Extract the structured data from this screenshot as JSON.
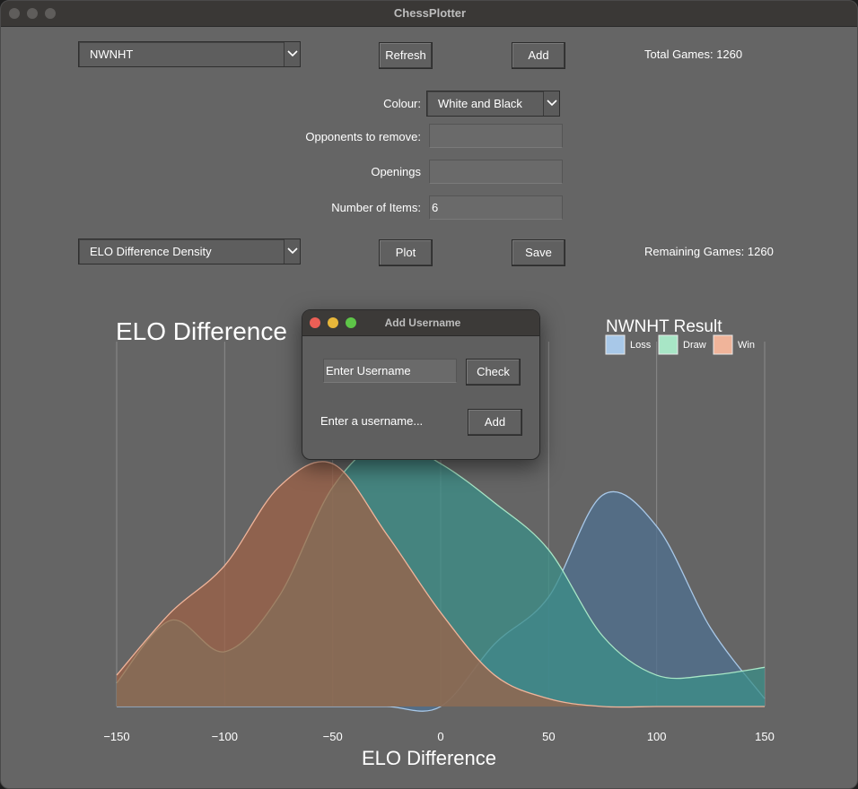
{
  "window": {
    "title": "ChessPlotter"
  },
  "controls": {
    "username_select": "NWNHT",
    "refresh_label": "Refresh",
    "add_label": "Add",
    "total_games": "Total Games: 1260",
    "colour_label": "Colour:",
    "colour_value": "White and Black",
    "opponents_label": "Opponents to remove:",
    "opponents_value": "",
    "openings_label": "Openings",
    "openings_value": "",
    "items_label": "Number of Items:",
    "items_value": "6",
    "plot_type": "ELO Difference Density",
    "plot_label": "Plot",
    "save_label": "Save",
    "remaining_games": "Remaining Games: 1260"
  },
  "dialog": {
    "title": "Add Username",
    "input_placeholder": "Enter Username",
    "check_label": "Check",
    "status_text": "Enter a username...",
    "add_label": "Add"
  },
  "colors": {
    "background": "#656565",
    "loss": "#4f7090",
    "draw": "#3b8f88",
    "win": "#9e6147",
    "overlap": "#7a8160"
  },
  "chart_data": {
    "type": "area",
    "title": "ELO Difference",
    "xlabel": "ELO Difference",
    "ylabel": "",
    "xlim": [
      -150,
      150
    ],
    "x_ticks": [
      "−150",
      "−100",
      "−50",
      "0",
      "50",
      "100",
      "150"
    ],
    "legend_title": "NWNHT Result",
    "legend_placement": "top-right",
    "grid": "vertical",
    "series": [
      {
        "name": "Loss",
        "color": "#a8c8e8",
        "fill": "#4f7090",
        "x": [
          -150,
          -125,
          -100,
          -75,
          -50,
          -25,
          0,
          25,
          50,
          75,
          100,
          125,
          150
        ],
        "y": [
          0.0,
          0.0,
          0.0,
          0.0,
          0.0,
          0.0,
          0.0,
          0.08,
          0.14,
          0.27,
          0.23,
          0.1,
          0.01
        ]
      },
      {
        "name": "Draw",
        "color": "#a8e6c6",
        "fill": "#3b8f88",
        "x": [
          -150,
          -125,
          -100,
          -75,
          -50,
          -25,
          0,
          25,
          50,
          75,
          100,
          125,
          150
        ],
        "y": [
          0.03,
          0.11,
          0.07,
          0.14,
          0.28,
          0.34,
          0.31,
          0.26,
          0.2,
          0.09,
          0.04,
          0.04,
          0.05
        ]
      },
      {
        "name": "Win",
        "color": "#f0b49a",
        "fill": "#9e6147",
        "x": [
          -150,
          -125,
          -100,
          -75,
          -50,
          -25,
          0,
          25,
          50,
          75,
          100,
          125,
          150
        ],
        "y": [
          0.04,
          0.12,
          0.18,
          0.28,
          0.31,
          0.22,
          0.12,
          0.04,
          0.01,
          0.0,
          0.0,
          0.0,
          0.0
        ]
      }
    ]
  }
}
